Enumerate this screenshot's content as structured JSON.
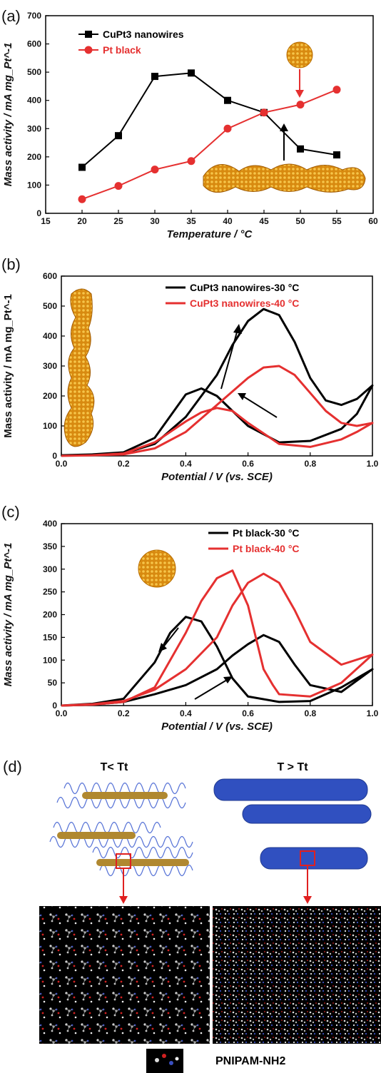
{
  "chart_data": [
    {
      "panel": "(a)",
      "type": "line",
      "xlabel": "Temperature / °C",
      "ylabel": "Mass activity / mA mg_Pt^-1",
      "xlim": [
        15,
        60
      ],
      "ylim": [
        0,
        700
      ],
      "xticks": [
        15,
        20,
        25,
        30,
        35,
        40,
        45,
        50,
        55,
        60
      ],
      "yticks": [
        0,
        100,
        200,
        300,
        400,
        500,
        600,
        700
      ],
      "legend_position": "top-left",
      "series": [
        {
          "name": "CuPt3 nanowires",
          "color": "#000000",
          "marker": "square",
          "x": [
            20,
            25,
            30,
            35,
            40,
            45,
            50,
            55
          ],
          "y": [
            163,
            275,
            485,
            497,
            400,
            357,
            228,
            207
          ]
        },
        {
          "name": "Pt black",
          "color": "#e53030",
          "marker": "circle",
          "x": [
            20,
            25,
            30,
            35,
            40,
            45,
            50,
            55
          ],
          "y": [
            50,
            97,
            155,
            185,
            300,
            357,
            385,
            438
          ]
        }
      ]
    },
    {
      "panel": "(b)",
      "type": "line",
      "xlabel": "Potential / V (vs. SCE)",
      "ylabel": "Mass activity / mA mg_Pt^-1",
      "xlim": [
        0.0,
        1.0
      ],
      "ylim": [
        0,
        600
      ],
      "xticks": [
        0.0,
        0.2,
        0.4,
        0.6,
        0.8,
        1.0
      ],
      "yticks": [
        0,
        100,
        200,
        300,
        400,
        500,
        600
      ],
      "legend_position": "top-right",
      "series": [
        {
          "name": "CuPt3 nanowires-30 °C",
          "color": "#000000",
          "x": [
            0.0,
            0.1,
            0.2,
            0.3,
            0.4,
            0.5,
            0.55,
            0.6,
            0.65,
            0.7,
            0.75,
            0.8,
            0.85,
            0.9,
            0.95,
            1.0,
            0.95,
            0.9,
            0.8,
            0.7,
            0.6,
            0.55,
            0.5,
            0.45,
            0.4,
            0.3,
            0.2,
            0.1,
            0.0
          ],
          "y": [
            2,
            3,
            8,
            40,
            130,
            270,
            370,
            450,
            490,
            470,
            380,
            260,
            185,
            170,
            190,
            235,
            140,
            90,
            50,
            45,
            100,
            150,
            200,
            225,
            205,
            60,
            12,
            5,
            2
          ]
        },
        {
          "name": "CuPt3 nanowires-40 °C",
          "color": "#e53030",
          "x": [
            0.0,
            0.1,
            0.2,
            0.3,
            0.4,
            0.5,
            0.6,
            0.65,
            0.7,
            0.75,
            0.8,
            0.85,
            0.9,
            0.95,
            1.0,
            0.95,
            0.9,
            0.8,
            0.7,
            0.6,
            0.55,
            0.5,
            0.45,
            0.4,
            0.3,
            0.2,
            0.1,
            0.0
          ],
          "y": [
            0,
            2,
            5,
            25,
            80,
            170,
            260,
            295,
            300,
            270,
            210,
            150,
            110,
            100,
            110,
            80,
            55,
            30,
            40,
            110,
            150,
            160,
            145,
            115,
            45,
            8,
            2,
            0
          ]
        }
      ]
    },
    {
      "panel": "(c)",
      "type": "line",
      "xlabel": "Potential / V (vs. SCE)",
      "ylabel": "Mass activity / mA mg_Pt^-1",
      "xlim": [
        0.0,
        1.0
      ],
      "ylim": [
        0,
        400
      ],
      "xticks": [
        0.0,
        0.2,
        0.4,
        0.6,
        0.8,
        1.0
      ],
      "yticks": [
        0,
        50,
        100,
        150,
        200,
        250,
        300,
        350,
        400
      ],
      "legend_position": "top-right",
      "series": [
        {
          "name": "Pt black-30 °C",
          "color": "#000000",
          "x": [
            0.0,
            0.1,
            0.2,
            0.3,
            0.4,
            0.5,
            0.55,
            0.6,
            0.65,
            0.7,
            0.75,
            0.8,
            0.9,
            1.0,
            0.9,
            0.8,
            0.7,
            0.6,
            0.55,
            0.5,
            0.45,
            0.4,
            0.35,
            0.3,
            0.2,
            0.1,
            0.0
          ],
          "y": [
            0,
            2,
            8,
            25,
            45,
            80,
            110,
            135,
            155,
            140,
            90,
            45,
            30,
            80,
            40,
            10,
            8,
            20,
            60,
            130,
            185,
            195,
            160,
            95,
            15,
            4,
            0
          ]
        },
        {
          "name": "Pt black-40 °C",
          "color": "#e53030",
          "x": [
            0.0,
            0.1,
            0.2,
            0.3,
            0.4,
            0.5,
            0.55,
            0.6,
            0.65,
            0.7,
            0.75,
            0.8,
            0.9,
            1.0,
            0.9,
            0.8,
            0.7,
            0.68,
            0.65,
            0.6,
            0.55,
            0.5,
            0.45,
            0.4,
            0.3,
            0.2,
            0.1,
            0.0
          ],
          "y": [
            0,
            3,
            10,
            35,
            80,
            150,
            220,
            270,
            290,
            270,
            210,
            140,
            90,
            112,
            50,
            20,
            25,
            45,
            80,
            220,
            297,
            280,
            230,
            160,
            40,
            8,
            2,
            0
          ]
        }
      ]
    }
  ],
  "panels": {
    "a": {
      "letter": "(a)"
    },
    "b": {
      "letter": "(b)"
    },
    "c": {
      "letter": "(c)"
    },
    "d": {
      "letter": "(d)",
      "left_label": "T< Tt",
      "right_label": "T > Tt",
      "molecule_label": "PNIPAM-NH2"
    }
  },
  "colors": {
    "black_series": "#000000",
    "red_series": "#e53030",
    "nanoparticle": "#e0a020",
    "polymer": "#3a5bd0"
  }
}
